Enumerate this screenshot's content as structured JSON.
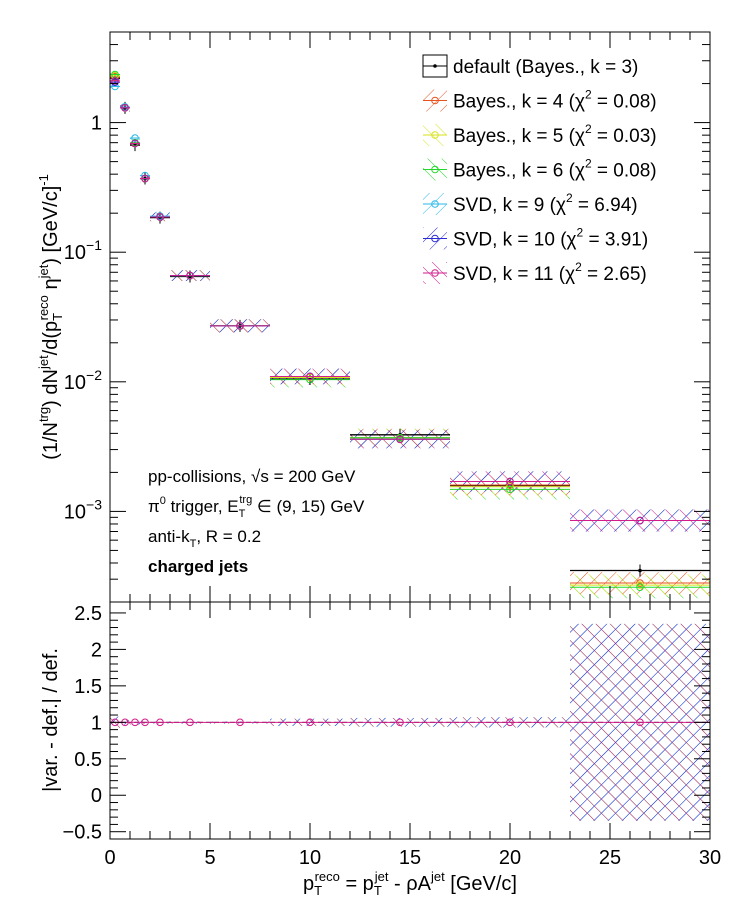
{
  "chart_data": [
    {
      "type": "scatter",
      "panel": "top",
      "ylabel_parts": {
        "p1": "(1/N",
        "p1sup": "trg",
        "p2": ") dN",
        "p2sup": "jet",
        "p3": "/d(p",
        "p3sub": "T",
        "p3sup": "reco",
        "p4": " η",
        "p4sup": "jet",
        "p5": ") [GeV/c]",
        "p5sup": "-1"
      },
      "yscale": "log",
      "ylim": [
        0.0002,
        5
      ],
      "xlim": [
        0,
        30
      ],
      "yticks": [
        {
          "v": 1,
          "base": "1",
          "exp": ""
        },
        {
          "v": 0.1,
          "base": "10",
          "exp": "−1"
        },
        {
          "v": 0.01,
          "base": "10",
          "exp": "−2"
        },
        {
          "v": 0.001,
          "base": "10",
          "exp": "−3"
        }
      ],
      "legend": {
        "placement": "top-right",
        "entries": [
          {
            "pre": "default (Bayes., k = 3)",
            "chi": "",
            "post": "",
            "color": "#000000",
            "style": "dot"
          },
          {
            "pre": "Bayes., k = 4 (",
            "chi": "χ",
            "post": " = 0.08)",
            "color": "#e8501e",
            "style": "hatch"
          },
          {
            "pre": "Bayes., k = 5 (",
            "chi": "χ",
            "post": " = 0.03)",
            "color": "#d8e21a",
            "style": "hatch"
          },
          {
            "pre": "Bayes., k = 6 (",
            "chi": "χ",
            "post": " = 0.08)",
            "color": "#22d82a",
            "style": "hatch"
          },
          {
            "pre": "SVD, k = 9 (",
            "chi": "χ",
            "post": " = 6.94)",
            "color": "#2ab8e8",
            "style": "hatch"
          },
          {
            "pre": "SVD, k = 10 (",
            "chi": "χ",
            "post": " = 3.91)",
            "color": "#2a2ad8",
            "style": "hatch"
          },
          {
            "pre": "SVD, k = 11 (",
            "chi": "χ",
            "post": " = 2.65)",
            "color": "#d21e8c",
            "style": "hatch"
          }
        ]
      },
      "annotations": {
        "line1_a": "pp-collisions, ",
        "line1_sqrt": "√",
        "line1_b": "s = 200 GeV",
        "line2_a": "π",
        "line2_sup0": "0",
        "line2_b": " trigger, E",
        "line2_sub": "T",
        "line2_sup": "trg",
        "line2_c": " ∈ (9, 15) GeV",
        "line3_a": "anti-k",
        "line3_sub": "T",
        "line3_b": ", R = 0.2",
        "line4": "charged jets"
      },
      "bins": [
        {
          "x": 0.25,
          "lo": 0.0,
          "hi": 0.5,
          "default": 2.2,
          "k4": 2.25,
          "k5": 2.3,
          "k6": 2.35,
          "svd9": 1.9,
          "svd10": 2.05,
          "svd11": 2.1
        },
        {
          "x": 0.75,
          "lo": 0.5,
          "hi": 1.0,
          "default": 1.3,
          "k4": 1.3,
          "k5": 1.3,
          "k6": 1.3,
          "svd9": 1.32,
          "svd10": 1.3,
          "svd11": 1.3
        },
        {
          "x": 1.25,
          "lo": 1.0,
          "hi": 1.5,
          "default": 0.67,
          "k4": 0.69,
          "k5": 0.69,
          "k6": 0.7,
          "svd9": 0.76,
          "svd10": 0.69,
          "svd11": 0.69
        },
        {
          "x": 1.75,
          "lo": 1.5,
          "hi": 2.0,
          "default": 0.37,
          "k4": 0.37,
          "k5": 0.37,
          "k6": 0.37,
          "svd9": 0.39,
          "svd10": 0.37,
          "svd11": 0.37
        },
        {
          "x": 2.5,
          "lo": 2.0,
          "hi": 3.0,
          "default": 0.185,
          "k4": 0.187,
          "k5": 0.187,
          "k6": 0.187,
          "svd9": 0.19,
          "svd10": 0.187,
          "svd11": 0.187
        },
        {
          "x": 4.0,
          "lo": 3.0,
          "hi": 5.0,
          "default": 0.065,
          "k4": 0.066,
          "k5": 0.066,
          "k6": 0.066,
          "svd9": 0.066,
          "svd10": 0.066,
          "svd11": 0.066
        },
        {
          "x": 6.5,
          "lo": 5.0,
          "hi": 8.0,
          "default": 0.027,
          "k4": 0.027,
          "k5": 0.027,
          "k6": 0.027,
          "svd9": 0.027,
          "svd10": 0.027,
          "svd11": 0.027
        },
        {
          "x": 10.0,
          "lo": 8.0,
          "hi": 12.0,
          "default": 0.0105,
          "k4": 0.011,
          "k5": 0.0108,
          "k6": 0.0104,
          "svd9": 0.011,
          "svd10": 0.011,
          "svd11": 0.011
        },
        {
          "x": 14.5,
          "lo": 12.0,
          "hi": 17.0,
          "default": 0.0039,
          "k4": 0.0037,
          "k5": 0.0037,
          "k6": 0.0037,
          "svd9": 0.0036,
          "svd10": 0.0036,
          "svd11": 0.0036
        },
        {
          "x": 20.0,
          "lo": 17.0,
          "hi": 23.0,
          "default": 0.00158,
          "k4": 0.0016,
          "k5": 0.00155,
          "k6": 0.00148,
          "svd9": 0.0017,
          "svd10": 0.0017,
          "svd11": 0.0017
        },
        {
          "x": 26.5,
          "lo": 23.0,
          "hi": 30.0,
          "default": 0.00035,
          "k4": 0.00028,
          "k5": 0.00027,
          "k6": 0.00026,
          "svd9": 0.00085,
          "svd10": 0.00085,
          "svd11": 0.00085
        }
      ]
    },
    {
      "type": "scatter",
      "panel": "ratio",
      "ylabel": "|var. - def.| / def.",
      "ylim": [
        -0.6,
        2.65
      ],
      "yticks": [
        "−0.5",
        "0",
        "0.5",
        "1",
        "1.5",
        "2",
        "2.5"
      ],
      "ytick_values": [
        -0.5,
        0,
        0.5,
        1,
        1.5,
        2,
        2.5
      ],
      "xlim": [
        0,
        30
      ],
      "xticks": [
        "0",
        "5",
        "10",
        "15",
        "20",
        "25",
        "30"
      ],
      "xtick_values": [
        0,
        5,
        10,
        15,
        20,
        25,
        30
      ],
      "xlabel_parts": {
        "a": "p",
        "asub": "T",
        "asup": "reco",
        "b": " = p",
        "bsub": "T",
        "bsup": "jet",
        "c": " - ρA",
        "csup": "jet",
        "d": " [GeV/c]"
      },
      "reference_line": 1,
      "ratio_points": [
        {
          "x": 0.25,
          "lo": 0.0,
          "hi": 0.5,
          "y": 1.0,
          "band": [
            0.92,
            1.08
          ]
        },
        {
          "x": 0.75,
          "lo": 0.5,
          "hi": 1.0,
          "y": 1.0,
          "band": [
            0.97,
            1.03
          ]
        },
        {
          "x": 1.25,
          "lo": 1.0,
          "hi": 1.5,
          "y": 1.0,
          "band": [
            0.97,
            1.03
          ]
        },
        {
          "x": 1.75,
          "lo": 1.5,
          "hi": 2.0,
          "y": 1.0,
          "band": [
            0.98,
            1.02
          ]
        },
        {
          "x": 2.5,
          "lo": 2.0,
          "hi": 3.0,
          "y": 1.0,
          "band": [
            0.99,
            1.01
          ]
        },
        {
          "x": 4.0,
          "lo": 3.0,
          "hi": 5.0,
          "y": 1.0,
          "band": [
            0.99,
            1.01
          ]
        },
        {
          "x": 6.5,
          "lo": 5.0,
          "hi": 8.0,
          "y": 1.0,
          "band": [
            0.99,
            1.01
          ]
        },
        {
          "x": 10.0,
          "lo": 8.0,
          "hi": 12.0,
          "y": 1.0,
          "band": [
            0.95,
            1.05
          ]
        },
        {
          "x": 14.5,
          "lo": 12.0,
          "hi": 17.0,
          "y": 1.0,
          "band": [
            0.94,
            1.06
          ]
        },
        {
          "x": 20.0,
          "lo": 17.0,
          "hi": 23.0,
          "y": 1.0,
          "band": [
            0.93,
            1.07
          ]
        },
        {
          "x": 26.5,
          "lo": 23.0,
          "hi": 30.0,
          "y": 1.0,
          "band": [
            -0.35,
            2.35
          ]
        }
      ]
    }
  ]
}
